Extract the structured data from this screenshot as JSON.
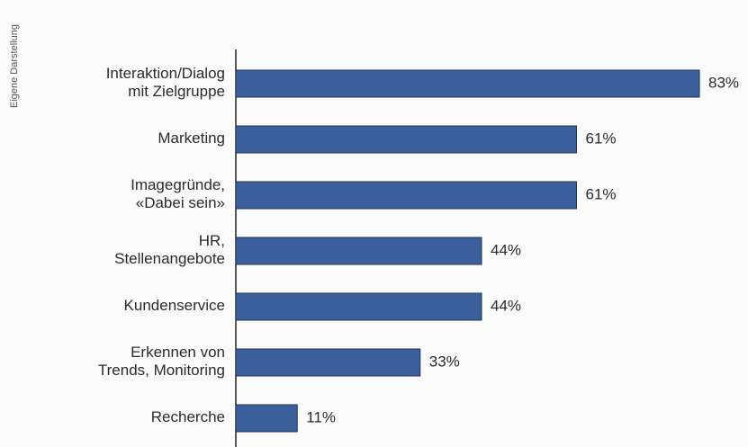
{
  "chart_data": {
    "type": "bar",
    "orientation": "horizontal",
    "note": "Eigene Darstellung",
    "categories": [
      "Interaktion/Dialog\nmit Zielgruppe",
      "Marketing",
      "Imagegründe,\n«Dabei sein»",
      "HR,\nStellenangebote",
      "Kundenservice",
      "Erkennen von\nTrends, Monitoring",
      "Recherche"
    ],
    "values": [
      83,
      61,
      61,
      44,
      44,
      33,
      11
    ],
    "value_labels": [
      "83%",
      "61%",
      "61%",
      "44%",
      "44%",
      "33%",
      "11%"
    ],
    "color": "#3b5f9b"
  }
}
